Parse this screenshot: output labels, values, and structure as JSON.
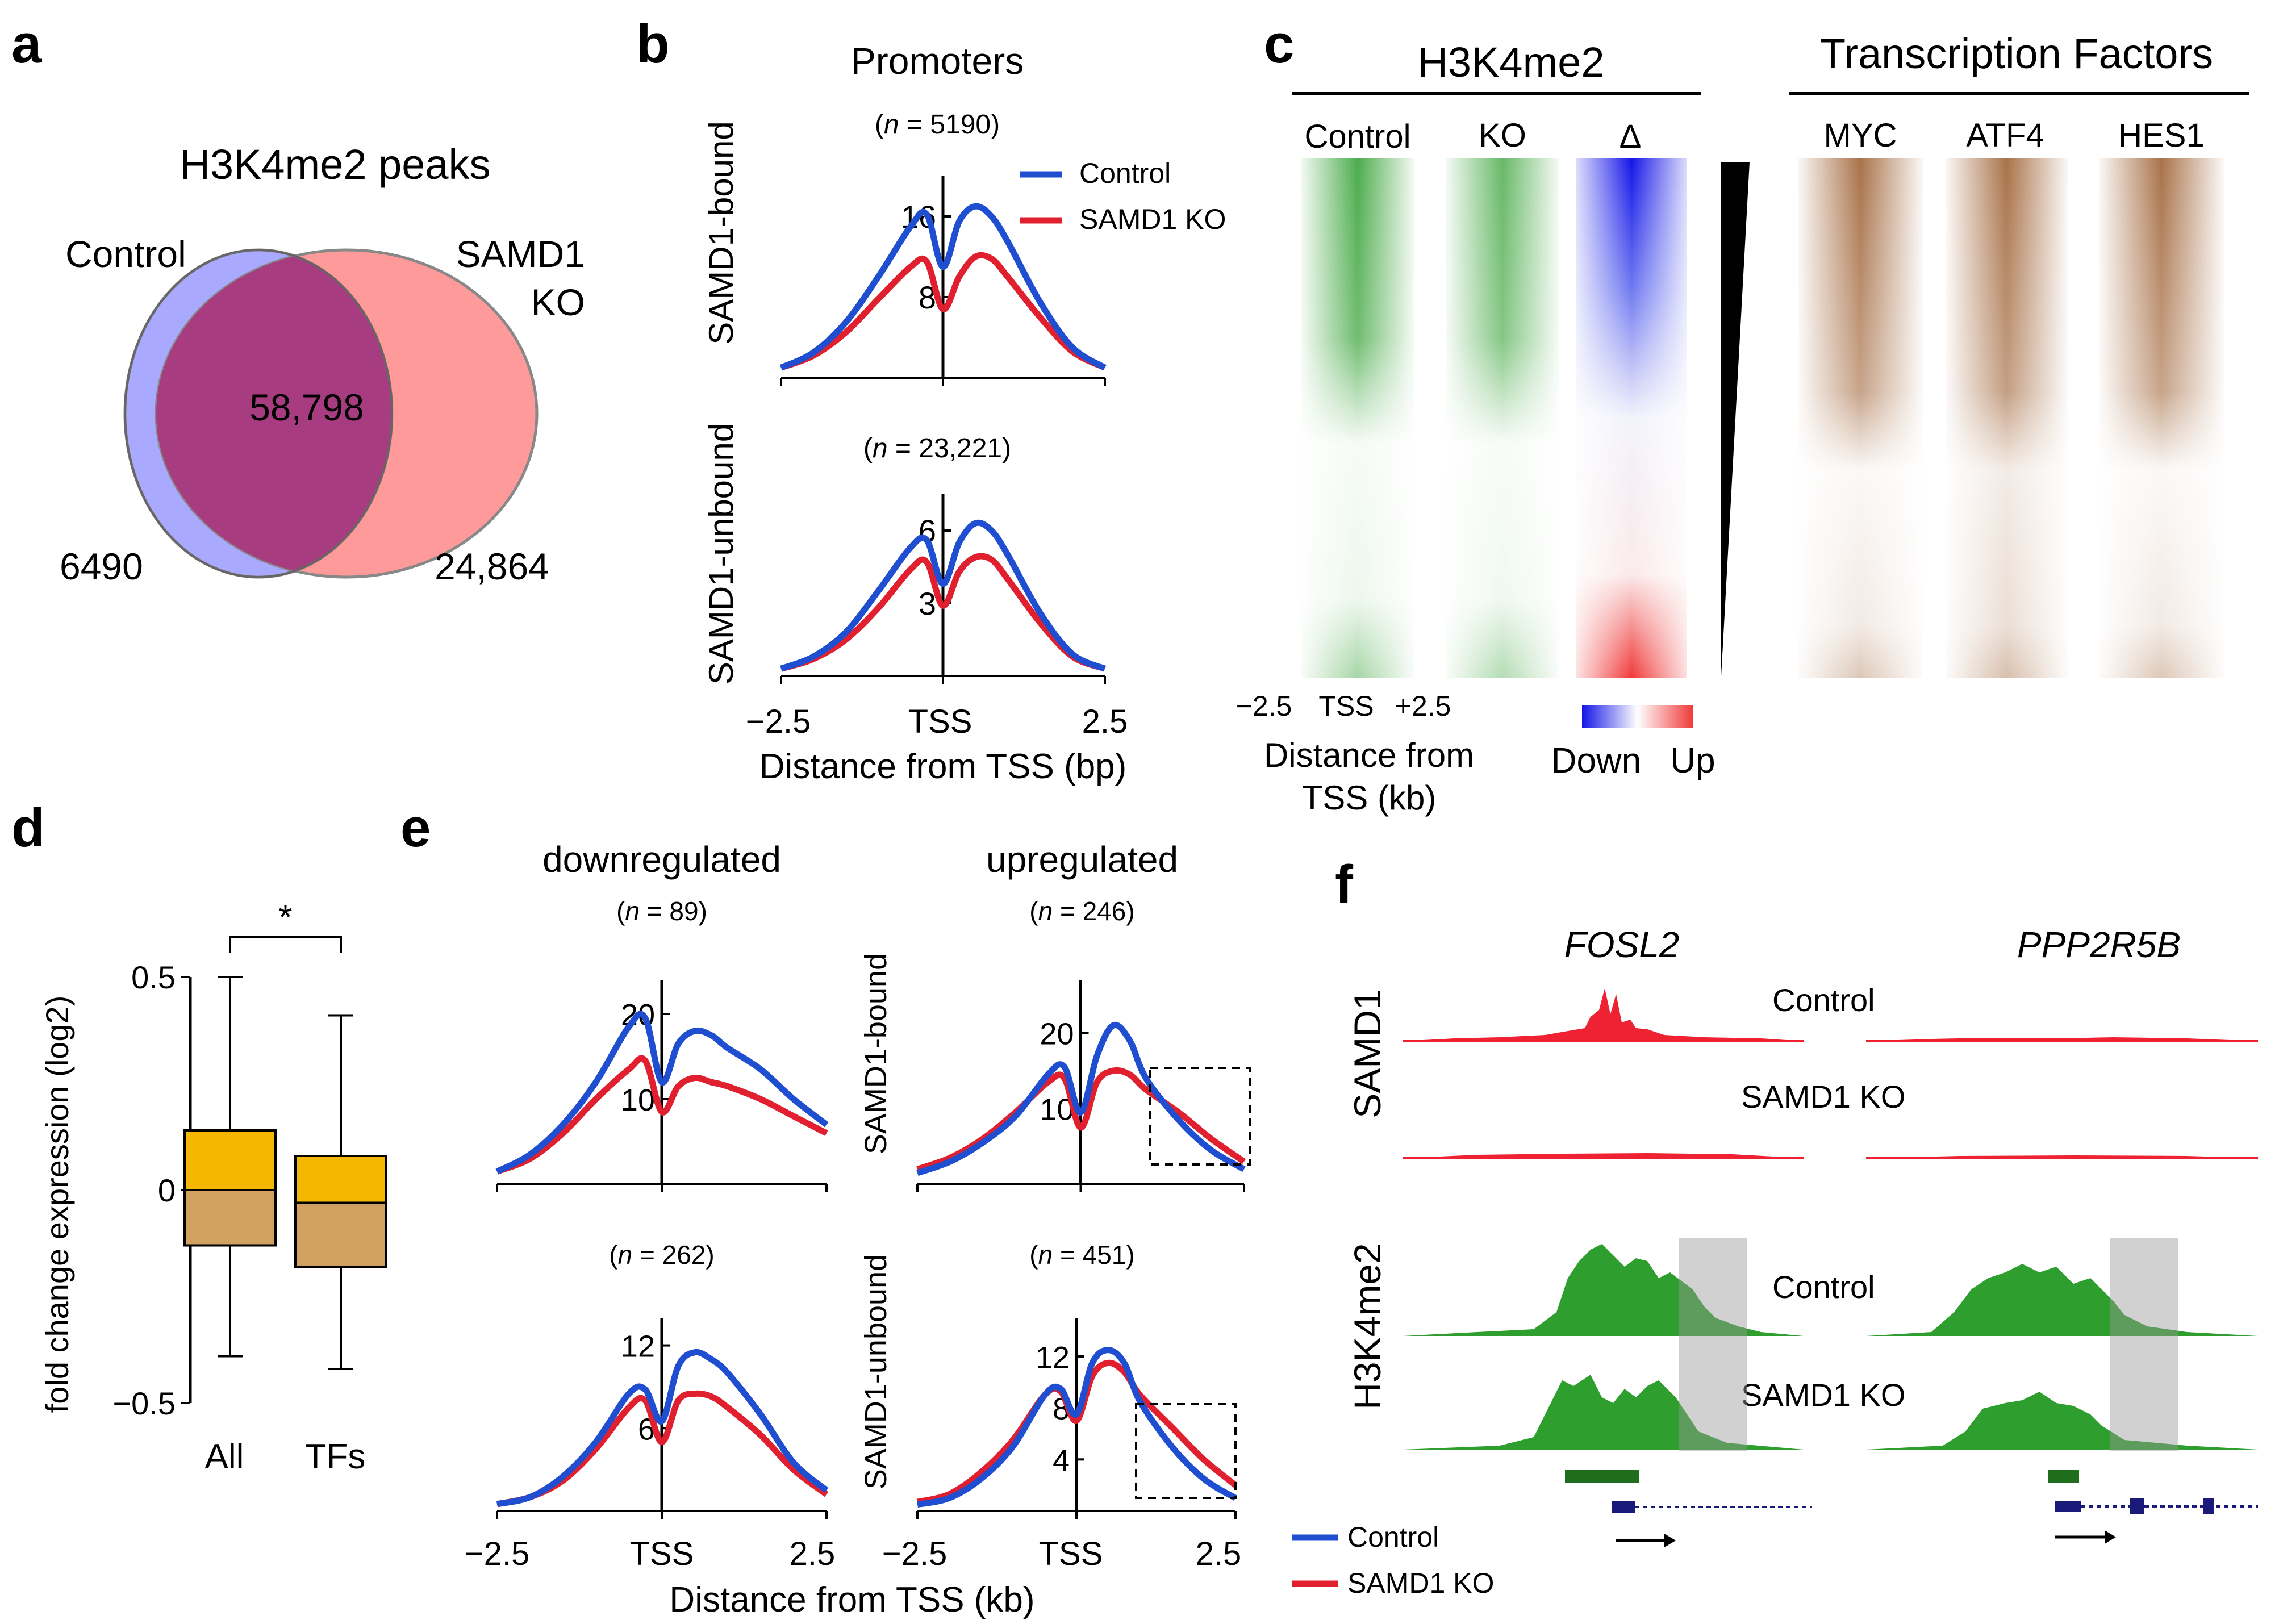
{
  "colors": {
    "control": "#1f4fd0",
    "ko": "#e0202f",
    "venn_control": "#8c8cff",
    "venn_ko": "#ff8a8a",
    "venn_overlap": "#a83c80",
    "green": "#2e9e2e",
    "track_red": "#ee2233",
    "box_upper": "#f5b800",
    "box_lower": "#d2a060",
    "brown": "#9a5a2a"
  },
  "panel_a": {
    "letter": "a",
    "title": "H3K4me2 peaks",
    "control_label": "Control",
    "ko_label_1": "SAMD1",
    "ko_label_2": "KO",
    "overlap": "58,798",
    "control_only": "6490",
    "ko_only": "24,864"
  },
  "panel_b": {
    "letter": "b",
    "title": "Promoters",
    "row1_label": "SAMD1-bound",
    "row2_label": "SAMD1-unbound",
    "legend_control": "Control",
    "legend_ko": "SAMD1 KO",
    "xlabel": "Distance from TSS (bp)",
    "xtick_left": "−2.5",
    "xtick_mid": "TSS",
    "xtick_right": "2.5"
  },
  "panel_c": {
    "letter": "c",
    "h3_title": "H3K4me2",
    "tf_title": "Transcription Factors",
    "col_control": "Control",
    "col_ko": "KO",
    "col_delta": "Δ",
    "col_myc": "MYC",
    "col_atf4": "ATF4",
    "col_hes1": "HES1",
    "x_left": "−2.5",
    "x_mid": "TSS",
    "x_right": "+2.5",
    "xlabel_1": "Distance from",
    "xlabel_2": "TSS  (kb)",
    "scale_down": "Down",
    "scale_up": "Up"
  },
  "panel_d": {
    "letter": "d",
    "ylabel": "fold change expression (log2)",
    "sig": "*",
    "ticks": [
      "0.5",
      "0",
      "−0.5"
    ]
  },
  "panel_e": {
    "letter": "e",
    "col1_title": "downregulated",
    "col2_title": "upregulated",
    "row1_label": "SAMD1-bound",
    "row2_label": "SAMD1-unbound",
    "xlabel": "Distance from TSS (kb)",
    "xtick_left": "−2.5",
    "xtick_mid": "TSS",
    "xtick_right": "2.5",
    "legend_control": "Control",
    "legend_ko": "SAMD1 KO"
  },
  "panel_f": {
    "letter": "f",
    "gene1": "FOSL2",
    "gene2": "PPP2R5B",
    "row1_label": "SAMD1",
    "row2_label": "H3K4me2",
    "control_1": "Control",
    "ko_1": "SAMD1 KO",
    "control_2": "Control",
    "ko_2": "SAMD1 KO"
  },
  "chart_data": [
    {
      "id": "b-bound",
      "type": "line",
      "title": "Promoters",
      "subtitle": "(n = 5190)",
      "n_label": "5190",
      "ylabel": "SAMD1-bound",
      "xlabel": "Distance from TSS (bp)",
      "xlim": [
        -2.5,
        2.5
      ],
      "ylim": [
        0,
        20
      ],
      "yticks": [
        8,
        16
      ],
      "x": [
        -2.5,
        -2.0,
        -1.5,
        -1.0,
        -0.5,
        -0.25,
        0.0,
        0.25,
        0.5,
        0.75,
        1.0,
        1.5,
        2.0,
        2.5
      ],
      "series": [
        {
          "name": "Control",
          "values": [
            1.0,
            2.5,
            5.5,
            10.0,
            15.0,
            16.2,
            11.0,
            15.5,
            17.0,
            16.0,
            13.5,
            7.5,
            3.0,
            1.0
          ]
        },
        {
          "name": "SAMD1 KO",
          "values": [
            1.0,
            2.2,
            4.5,
            7.8,
            11.0,
            11.5,
            6.8,
            10.0,
            12.0,
            11.8,
            10.0,
            6.0,
            2.6,
            1.0
          ]
        }
      ]
    },
    {
      "id": "b-unbound",
      "type": "line",
      "subtitle": "(n = 23,221)",
      "n_label": "23,221",
      "ylabel": "SAMD1-unbound",
      "xlabel": "Distance from TSS (bp)",
      "xlim": [
        -2.5,
        2.5
      ],
      "ylim": [
        0,
        7.5
      ],
      "yticks": [
        3,
        6
      ],
      "x": [
        -2.5,
        -2.0,
        -1.5,
        -1.0,
        -0.5,
        -0.25,
        0.0,
        0.25,
        0.5,
        0.75,
        1.0,
        1.5,
        2.0,
        2.5
      ],
      "series": [
        {
          "name": "Control",
          "values": [
            0.3,
            0.8,
            1.8,
            3.5,
            5.3,
            5.6,
            3.8,
            5.5,
            6.3,
            6.0,
            5.0,
            2.6,
            0.9,
            0.3
          ]
        },
        {
          "name": "SAMD1 KO",
          "values": [
            0.3,
            0.7,
            1.5,
            2.8,
            4.4,
            4.7,
            2.9,
            4.3,
            4.9,
            4.8,
            4.0,
            2.2,
            0.8,
            0.3
          ]
        }
      ]
    },
    {
      "id": "d-box",
      "type": "box",
      "categories": [
        "All",
        "TFs"
      ],
      "ylabel": "fold change expression (log2)",
      "ylim": [
        -0.5,
        0.5
      ],
      "yticks": [
        0.5,
        0,
        -0.5
      ],
      "significance": "*",
      "boxes": [
        {
          "category": "All",
          "whisker_low": -0.39,
          "q1": -0.13,
          "median": 0.0,
          "q3": 0.14,
          "whisker_high": 0.5
        },
        {
          "category": "TFs",
          "whisker_low": -0.42,
          "q1": -0.18,
          "median": -0.03,
          "q3": 0.08,
          "whisker_high": 0.41
        }
      ]
    },
    {
      "id": "e-down-bound",
      "type": "line",
      "title": "downregulated",
      "subtitle": "(n = 89)",
      "n_label": "89",
      "xlim": [
        -2.5,
        2.5
      ],
      "ylim": [
        0,
        24
      ],
      "yticks": [
        10,
        20
      ],
      "x": [
        -2.5,
        -2.0,
        -1.5,
        -1.0,
        -0.5,
        -0.25,
        0.0,
        0.25,
        0.5,
        0.75,
        1.0,
        1.5,
        2.0,
        2.5
      ],
      "series": [
        {
          "name": "Control",
          "values": [
            1.5,
            3.5,
            7.0,
            12.0,
            18.5,
            19.5,
            12.0,
            16.5,
            18.0,
            17.5,
            16.0,
            13.5,
            10.0,
            7.0
          ]
        },
        {
          "name": "SAMD1 KO",
          "values": [
            1.5,
            3.0,
            6.0,
            10.0,
            13.5,
            14.5,
            8.5,
            11.5,
            12.5,
            12.0,
            11.5,
            10.0,
            8.0,
            6.0
          ]
        }
      ]
    },
    {
      "id": "e-up-bound",
      "type": "line",
      "title": "upregulated",
      "subtitle": "(n = 246)",
      "n_label": "246",
      "ylabel": "SAMD1-bound",
      "xlim": [
        -2.5,
        2.5
      ],
      "ylim": [
        0,
        27
      ],
      "yticks": [
        10,
        20
      ],
      "x": [
        -2.5,
        -2.0,
        -1.5,
        -1.0,
        -0.5,
        -0.25,
        0.0,
        0.25,
        0.5,
        0.75,
        1.0,
        1.5,
        2.0,
        2.5
      ],
      "series": [
        {
          "name": "Control",
          "values": [
            1.5,
            3.0,
            5.5,
            9.0,
            14.5,
            15.5,
            9.5,
            17.0,
            21.0,
            19.0,
            14.0,
            8.5,
            4.5,
            2.0
          ]
        },
        {
          "name": "SAMD1 KO",
          "values": [
            2.0,
            3.5,
            6.0,
            9.5,
            13.5,
            14.0,
            7.5,
            13.5,
            15.0,
            14.5,
            12.5,
            9.5,
            6.0,
            3.0
          ]
        }
      ]
    },
    {
      "id": "e-down-unbound",
      "type": "line",
      "subtitle": "(n = 262)",
      "n_label": "262",
      "xlim": [
        -2.5,
        2.5
      ],
      "ylim": [
        0,
        14
      ],
      "yticks": [
        6,
        12
      ],
      "x": [
        -2.5,
        -2.0,
        -1.5,
        -1.0,
        -0.5,
        -0.25,
        0.0,
        0.25,
        0.5,
        0.75,
        1.0,
        1.5,
        2.0,
        2.5
      ],
      "series": [
        {
          "name": "Control",
          "values": [
            0.5,
            1.0,
            2.5,
            5.0,
            8.5,
            8.8,
            6.5,
            10.5,
            11.5,
            11.0,
            10.0,
            7.0,
            3.5,
            1.5
          ]
        },
        {
          "name": "SAMD1 KO",
          "values": [
            0.5,
            1.0,
            2.2,
            4.5,
            7.5,
            8.0,
            5.0,
            8.0,
            8.5,
            8.3,
            7.5,
            5.5,
            3.0,
            1.2
          ]
        }
      ]
    },
    {
      "id": "e-up-unbound",
      "type": "line",
      "subtitle": "(n = 451)",
      "n_label": "451",
      "ylabel": "SAMD1-unbound",
      "xlim": [
        -2.5,
        2.5
      ],
      "ylim": [
        0,
        15
      ],
      "yticks": [
        4,
        8,
        12
      ],
      "x": [
        -2.5,
        -2.0,
        -1.5,
        -1.0,
        -0.5,
        -0.25,
        0.0,
        0.25,
        0.5,
        0.75,
        1.0,
        1.5,
        2.0,
        2.5
      ],
      "series": [
        {
          "name": "Control",
          "values": [
            0.5,
            1.0,
            2.5,
            5.0,
            9.0,
            9.5,
            7.5,
            11.5,
            12.5,
            11.5,
            8.5,
            5.0,
            2.5,
            1.0
          ]
        },
        {
          "name": "SAMD1 KO",
          "values": [
            0.7,
            1.3,
            3.0,
            5.5,
            9.0,
            9.3,
            7.0,
            10.5,
            11.5,
            10.8,
            9.0,
            6.5,
            4.0,
            2.0
          ]
        }
      ]
    }
  ]
}
